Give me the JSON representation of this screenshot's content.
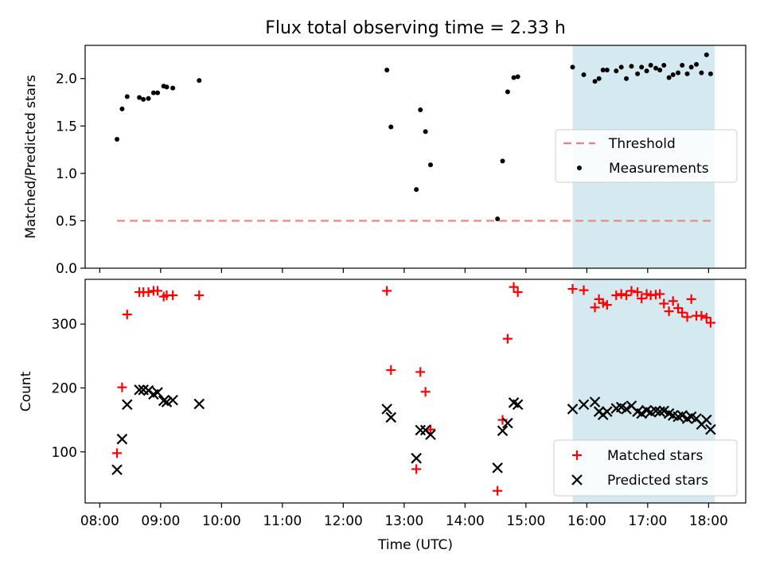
{
  "chart_data": [
    {
      "type": "scatter",
      "title": "Flux total observing time = 2.33 h",
      "xlabel": "",
      "ylabel": "Matched/Predicted stars",
      "ylim": [
        0,
        2.35
      ],
      "yticks": [
        "0.0",
        "0.5",
        "1.0",
        "1.5",
        "2.0"
      ],
      "threshold": {
        "name": "Threshold",
        "y": 0.5,
        "x_range": [
          "08:17",
          "18:05"
        ],
        "color": "#f08080"
      },
      "shaded_span": {
        "x_range": [
          "15:46",
          "18:06"
        ],
        "color": "#d4eaf0"
      },
      "legend_placement": "center-right",
      "series": [
        {
          "name": "Measurements",
          "marker": "dot",
          "color": "#000000",
          "x": [
            "08:17",
            "08:22",
            "08:27",
            "08:39",
            "08:43",
            "08:48",
            "08:53",
            "08:57",
            "09:03",
            "09:06",
            "09:12",
            "09:38",
            "12:43",
            "12:47",
            "13:12",
            "13:16",
            "13:21",
            "13:26",
            "14:32",
            "14:37",
            "14:42",
            "14:48",
            "14:52",
            "15:46",
            "15:57",
            "16:08",
            "16:12",
            "16:16",
            "16:20",
            "16:29",
            "16:34",
            "16:39",
            "16:44",
            "16:50",
            "16:54",
            "16:59",
            "17:03",
            "17:08",
            "17:12",
            "17:16",
            "17:21",
            "17:25",
            "17:30",
            "17:34",
            "17:39",
            "17:43",
            "17:48",
            "17:53",
            "17:58",
            "18:02"
          ],
          "y": [
            1.36,
            1.68,
            1.81,
            1.8,
            1.78,
            1.79,
            1.85,
            1.85,
            1.92,
            1.91,
            1.9,
            1.98,
            2.09,
            1.49,
            0.83,
            1.67,
            1.44,
            1.09,
            0.52,
            1.13,
            1.86,
            2.01,
            2.02,
            2.12,
            2.04,
            1.97,
            2.0,
            2.09,
            2.09,
            2.08,
            2.12,
            2.0,
            2.13,
            2.05,
            2.12,
            2.08,
            2.14,
            2.11,
            2.09,
            2.14,
            2.01,
            2.04,
            2.06,
            2.14,
            2.05,
            2.12,
            2.15,
            2.06,
            2.25,
            2.05
          ]
        }
      ]
    },
    {
      "type": "scatter",
      "title": "",
      "xlabel": "Time (UTC)",
      "ylabel": "Count",
      "ylim": [
        20,
        370
      ],
      "yticks": [
        "100",
        "200",
        "300"
      ],
      "xticks": [
        "08:00",
        "09:00",
        "10:00",
        "11:00",
        "12:00",
        "13:00",
        "14:00",
        "15:00",
        "16:00",
        "17:00",
        "18:00"
      ],
      "shaded_span": {
        "x_range": [
          "15:46",
          "18:06"
        ],
        "color": "#d4eaf0"
      },
      "legend_placement": "lower-right",
      "series": [
        {
          "name": "Matched stars",
          "marker": "plus",
          "color": "#ff0000",
          "x": [
            "08:17",
            "08:22",
            "08:27",
            "08:39",
            "08:43",
            "08:48",
            "08:53",
            "08:57",
            "09:03",
            "09:06",
            "09:12",
            "09:38",
            "12:43",
            "12:47",
            "13:12",
            "13:16",
            "13:21",
            "13:26",
            "14:32",
            "14:37",
            "14:42",
            "14:48",
            "14:52",
            "15:46",
            "15:57",
            "16:08",
            "16:12",
            "16:16",
            "16:20",
            "16:29",
            "16:34",
            "16:39",
            "16:44",
            "16:50",
            "16:54",
            "16:59",
            "17:03",
            "17:08",
            "17:12",
            "17:16",
            "17:21",
            "17:25",
            "17:30",
            "17:34",
            "17:39",
            "17:43",
            "17:48",
            "17:53",
            "17:58",
            "18:02"
          ],
          "y": [
            98,
            201,
            315,
            350,
            350,
            350,
            352,
            352,
            343,
            345,
            345,
            345,
            352,
            228,
            73,
            225,
            194,
            135,
            39,
            150,
            277,
            358,
            350,
            355,
            353,
            326,
            339,
            333,
            330,
            345,
            347,
            345,
            352,
            350,
            340,
            347,
            345,
            346,
            347,
            332,
            320,
            336,
            325,
            318,
            311,
            339,
            313,
            313,
            310,
            302
          ]
        },
        {
          "name": "Predicted stars",
          "marker": "x",
          "color": "#000000",
          "x": [
            "08:17",
            "08:22",
            "08:27",
            "08:39",
            "08:43",
            "08:48",
            "08:53",
            "08:57",
            "09:03",
            "09:06",
            "09:12",
            "09:38",
            "12:43",
            "12:47",
            "13:12",
            "13:16",
            "13:21",
            "13:26",
            "14:32",
            "14:37",
            "14:42",
            "14:48",
            "14:52",
            "15:46",
            "15:57",
            "16:08",
            "16:12",
            "16:16",
            "16:20",
            "16:29",
            "16:34",
            "16:39",
            "16:44",
            "16:50",
            "16:54",
            "16:59",
            "17:03",
            "17:08",
            "17:12",
            "17:16",
            "17:21",
            "17:25",
            "17:30",
            "17:34",
            "17:39",
            "17:43",
            "17:48",
            "17:53",
            "17:58",
            "18:02"
          ],
          "y": [
            72,
            120,
            174,
            197,
            197,
            196,
            190,
            193,
            180,
            178,
            181,
            175,
            167,
            154,
            90,
            134,
            134,
            127,
            75,
            133,
            145,
            177,
            174,
            167,
            174,
            178,
            163,
            158,
            163,
            168,
            170,
            167,
            172,
            163,
            160,
            165,
            162,
            164,
            163,
            164,
            160,
            157,
            155,
            157,
            152,
            155,
            152,
            143,
            150,
            135
          ]
        }
      ]
    }
  ]
}
